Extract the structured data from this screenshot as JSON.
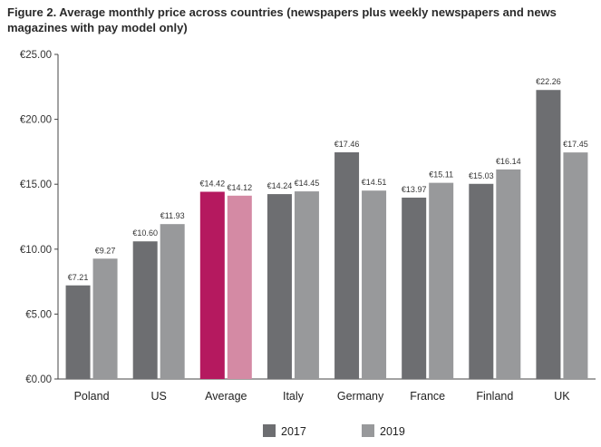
{
  "chart_data": {
    "type": "bar",
    "title": "Figure 2. Average monthly price across countries (newspapers plus weekly newspapers and news magazines with pay model only)",
    "categories": [
      "Poland",
      "US",
      "Average",
      "Italy",
      "Germany",
      "France",
      "Finland",
      "UK"
    ],
    "series": [
      {
        "name": "2017",
        "values": [
          7.21,
          10.6,
          14.42,
          14.24,
          17.46,
          13.97,
          15.03,
          22.26
        ],
        "labels": [
          "€7.21",
          "€10.60",
          "€14.42",
          "€14.24",
          "€17.46",
          "€13.97",
          "€15.03",
          "€22.26"
        ]
      },
      {
        "name": "2019",
        "values": [
          9.27,
          11.93,
          14.12,
          14.45,
          14.51,
          15.11,
          16.14,
          17.45
        ],
        "labels": [
          "€9.27",
          "€11.93",
          "€14.12",
          "€14.45",
          "€14.51",
          "€15.11",
          "€16.14",
          "€17.45"
        ]
      }
    ],
    "ylim": [
      0,
      25
    ],
    "yticks": [
      0,
      5,
      10,
      15,
      20,
      25
    ],
    "ytick_labels": [
      "€0.00",
      "€5.00",
      "€10.00",
      "€15.00",
      "€20.00",
      "€25.00"
    ],
    "xlabel": "",
    "ylabel": "",
    "grid": false,
    "legend_position": "bottom-center",
    "colors": {
      "2017": "#6d6e71",
      "2019": "#98999b",
      "highlight_2017": "#b5195f",
      "highlight_2019": "#d48aa4",
      "axis": "#444444"
    },
    "highlight_category": "Average"
  }
}
